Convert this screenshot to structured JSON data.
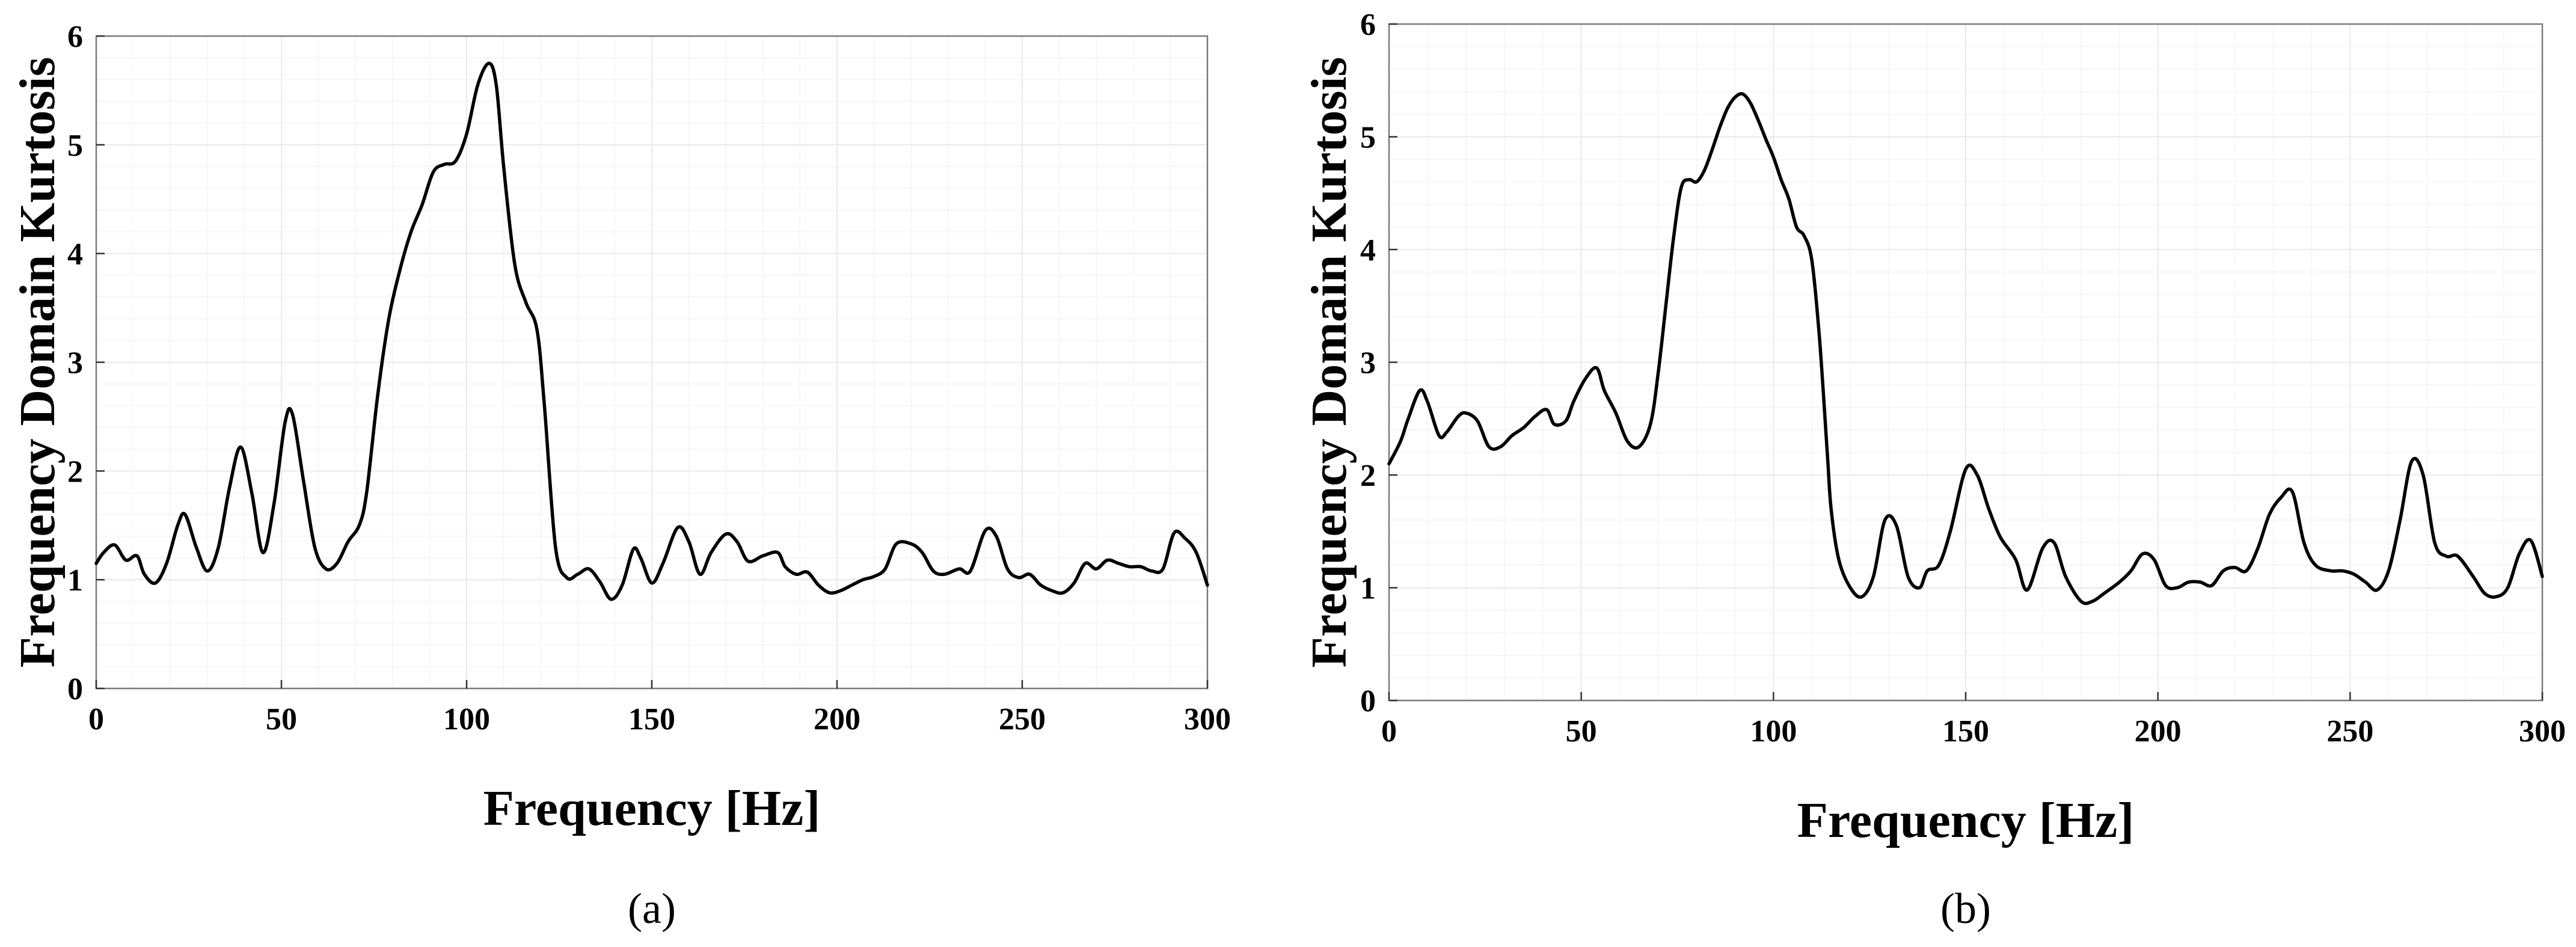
{
  "chart_data": [
    {
      "type": "line",
      "panel_label": "(a)",
      "xlabel": "Frequency [Hz]",
      "ylabel": "Frequency Domain Kurtosis",
      "xlim": [
        0,
        300
      ],
      "ylim": [
        0,
        6
      ],
      "xticks": [
        0,
        50,
        100,
        150,
        200,
        250,
        300
      ],
      "yticks": [
        0,
        1,
        2,
        3,
        4,
        5,
        6
      ],
      "grid": true,
      "series": [
        {
          "color": "#000000",
          "x": [
            0,
            2,
            5,
            8,
            11,
            13,
            16,
            19,
            22,
            24,
            27,
            30,
            33,
            36,
            39,
            42,
            45,
            48,
            51,
            53,
            56,
            59,
            62,
            65,
            68,
            71,
            73,
            76,
            79,
            82,
            85,
            88,
            91,
            94,
            97,
            100,
            103,
            106,
            108,
            110,
            113,
            116,
            119,
            121,
            124,
            127,
            130,
            133,
            136,
            139,
            142,
            145,
            147,
            150,
            153,
            157,
            160,
            163,
            166,
            170,
            173,
            176,
            180,
            184,
            186,
            189,
            192,
            195,
            198,
            201,
            204,
            207,
            210,
            213,
            216,
            220,
            223,
            226,
            229,
            233,
            236,
            240,
            243,
            246,
            249,
            252,
            255,
            258,
            261,
            264,
            267,
            270,
            273,
            276,
            279,
            282,
            285,
            288,
            291,
            294,
            297,
            300
          ],
          "y": [
            1.15,
            1.25,
            1.32,
            1.18,
            1.22,
            1.05,
            0.97,
            1.15,
            1.5,
            1.6,
            1.3,
            1.08,
            1.3,
            1.85,
            2.22,
            1.8,
            1.25,
            1.7,
            2.45,
            2.52,
            1.9,
            1.3,
            1.1,
            1.15,
            1.35,
            1.5,
            1.8,
            2.7,
            3.4,
            3.85,
            4.2,
            4.45,
            4.75,
            4.82,
            4.85,
            5.1,
            5.55,
            5.75,
            5.55,
            4.8,
            3.9,
            3.55,
            3.3,
            2.6,
            1.3,
            1.02,
            1.05,
            1.1,
            0.98,
            0.82,
            0.95,
            1.28,
            1.2,
            0.97,
            1.15,
            1.48,
            1.35,
            1.05,
            1.25,
            1.42,
            1.35,
            1.17,
            1.22,
            1.25,
            1.12,
            1.05,
            1.07,
            0.95,
            0.88,
            0.9,
            0.95,
            1.0,
            1.03,
            1.1,
            1.33,
            1.33,
            1.25,
            1.08,
            1.05,
            1.1,
            1.08,
            1.45,
            1.4,
            1.1,
            1.02,
            1.05,
            0.95,
            0.9,
            0.88,
            0.97,
            1.15,
            1.1,
            1.18,
            1.15,
            1.12,
            1.12,
            1.08,
            1.1,
            1.43,
            1.38,
            1.25,
            0.95
          ]
        }
      ]
    },
    {
      "type": "line",
      "panel_label": "(b)",
      "xlabel": "Frequency [Hz]",
      "ylabel": "Frequency Domain Kurtosis",
      "xlim": [
        0,
        300
      ],
      "ylim": [
        0,
        6
      ],
      "xticks": [
        0,
        50,
        100,
        150,
        200,
        250,
        300
      ],
      "yticks": [
        0,
        1,
        2,
        3,
        4,
        5,
        6
      ],
      "grid": true,
      "series": [
        {
          "color": "#000000",
          "x": [
            0,
            3,
            5,
            8,
            10,
            13,
            15,
            18,
            20,
            23,
            26,
            29,
            32,
            35,
            38,
            41,
            43,
            46,
            48,
            51,
            54,
            56,
            59,
            62,
            65,
            68,
            70,
            72,
            74,
            76,
            78,
            80,
            82,
            84,
            86,
            88,
            90,
            92,
            94,
            96,
            98,
            100,
            102,
            104,
            106,
            108,
            110,
            112,
            114,
            115,
            117,
            120,
            123,
            126,
            129,
            132,
            135,
            138,
            140,
            143,
            146,
            150,
            153,
            156,
            159,
            163,
            166,
            170,
            173,
            176,
            180,
            183,
            186,
            190,
            193,
            196,
            199,
            202,
            205,
            208,
            211,
            214,
            217,
            220,
            223,
            226,
            229,
            232,
            235,
            238,
            241,
            245,
            248,
            251,
            254,
            257,
            260,
            263,
            266,
            269,
            272,
            275,
            278,
            282,
            285,
            288,
            291,
            294,
            297,
            300
          ],
          "y": [
            2.1,
            2.3,
            2.5,
            2.75,
            2.65,
            2.35,
            2.38,
            2.52,
            2.55,
            2.48,
            2.25,
            2.25,
            2.35,
            2.42,
            2.52,
            2.58,
            2.45,
            2.48,
            2.65,
            2.85,
            2.95,
            2.75,
            2.55,
            2.3,
            2.25,
            2.45,
            2.9,
            3.5,
            4.1,
            4.55,
            4.62,
            4.6,
            4.7,
            4.88,
            5.08,
            5.25,
            5.35,
            5.38,
            5.3,
            5.15,
            4.98,
            4.82,
            4.62,
            4.45,
            4.2,
            4.12,
            3.9,
            3.2,
            2.2,
            1.7,
            1.25,
            1.0,
            0.92,
            1.1,
            1.6,
            1.55,
            1.1,
            1.0,
            1.15,
            1.2,
            1.5,
            2.05,
            2.0,
            1.7,
            1.45,
            1.25,
            0.98,
            1.35,
            1.4,
            1.1,
            0.88,
            0.88,
            0.95,
            1.05,
            1.15,
            1.3,
            1.25,
            1.02,
            1.0,
            1.05,
            1.05,
            1.02,
            1.15,
            1.18,
            1.15,
            1.35,
            1.65,
            1.8,
            1.85,
            1.4,
            1.2,
            1.15,
            1.15,
            1.12,
            1.05,
            0.98,
            1.15,
            1.6,
            2.12,
            2.0,
            1.4,
            1.28,
            1.28,
            1.1,
            0.95,
            0.92,
            1.0,
            1.3,
            1.42,
            1.1
          ]
        }
      ]
    }
  ]
}
